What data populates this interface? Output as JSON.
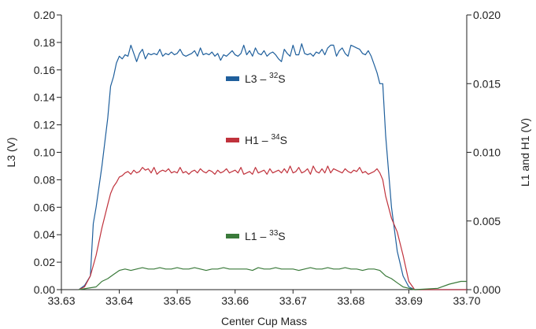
{
  "chart_data": {
    "type": "line",
    "xlabel": "Center Cup Mass",
    "ylabel_left": "L3 (V)",
    "ylabel_right": "L1 and H1 (V)",
    "xlim": [
      33.63,
      33.7
    ],
    "ylim_left": [
      0.0,
      0.2
    ],
    "ylim_right": [
      0.0,
      0.02
    ],
    "x_ticks": [
      "33.63",
      "33.64",
      "33.65",
      "33.66",
      "33.67",
      "33.68",
      "33.69",
      "33.70"
    ],
    "y_left_ticks": [
      "0.00",
      "0.02",
      "0.04",
      "0.06",
      "0.08",
      "0.10",
      "0.12",
      "0.14",
      "0.16",
      "0.18",
      "0.20"
    ],
    "y_right_ticks": [
      "0.000",
      "0.005",
      "0.010",
      "0.015",
      "0.020"
    ],
    "grid": false,
    "legend_placement": "center",
    "series": [
      {
        "name_main": "L3 – ",
        "name_sup": "32",
        "name_suffix": "S",
        "axis": "left",
        "color": "#1f5f9c",
        "x": [
          33.633,
          33.634,
          33.635,
          33.6355,
          33.636,
          33.637,
          33.638,
          33.6385,
          33.639,
          33.6395,
          33.64,
          33.6405,
          33.641,
          33.6415,
          33.642,
          33.6425,
          33.643,
          33.6435,
          33.644,
          33.6445,
          33.645,
          33.6455,
          33.646,
          33.6465,
          33.647,
          33.6475,
          33.648,
          33.6485,
          33.649,
          33.6495,
          33.65,
          33.6505,
          33.651,
          33.6515,
          33.652,
          33.6525,
          33.653,
          33.6535,
          33.654,
          33.6545,
          33.655,
          33.6555,
          33.656,
          33.6565,
          33.657,
          33.6575,
          33.658,
          33.6585,
          33.659,
          33.6595,
          33.66,
          33.6605,
          33.661,
          33.6615,
          33.662,
          33.6625,
          33.663,
          33.6635,
          33.664,
          33.6645,
          33.665,
          33.6655,
          33.666,
          33.6665,
          33.667,
          33.6675,
          33.668,
          33.6685,
          33.669,
          33.6695,
          33.67,
          33.6705,
          33.671,
          33.6715,
          33.672,
          33.6725,
          33.673,
          33.6735,
          33.674,
          33.6745,
          33.675,
          33.6755,
          33.676,
          33.6765,
          33.677,
          33.6775,
          33.678,
          33.6785,
          33.679,
          33.6795,
          33.68,
          33.6805,
          33.681,
          33.6815,
          33.682,
          33.6825,
          33.683,
          33.6835,
          33.684,
          33.6845,
          33.685,
          33.6855,
          33.686,
          33.687,
          33.688,
          33.689,
          33.69,
          33.691,
          33.7
        ],
        "y": [
          0.0,
          0.003,
          0.01,
          0.048,
          0.06,
          0.09,
          0.125,
          0.148,
          0.155,
          0.165,
          0.17,
          0.168,
          0.171,
          0.17,
          0.178,
          0.172,
          0.166,
          0.172,
          0.175,
          0.168,
          0.172,
          0.171,
          0.172,
          0.171,
          0.175,
          0.17,
          0.172,
          0.171,
          0.173,
          0.171,
          0.172,
          0.175,
          0.171,
          0.17,
          0.171,
          0.172,
          0.174,
          0.17,
          0.176,
          0.171,
          0.172,
          0.171,
          0.173,
          0.17,
          0.172,
          0.167,
          0.171,
          0.17,
          0.172,
          0.174,
          0.171,
          0.17,
          0.172,
          0.178,
          0.171,
          0.174,
          0.17,
          0.176,
          0.172,
          0.171,
          0.174,
          0.17,
          0.172,
          0.173,
          0.171,
          0.168,
          0.166,
          0.175,
          0.172,
          0.17,
          0.178,
          0.171,
          0.171,
          0.179,
          0.172,
          0.171,
          0.172,
          0.17,
          0.173,
          0.172,
          0.175,
          0.171,
          0.176,
          0.178,
          0.178,
          0.17,
          0.174,
          0.176,
          0.172,
          0.17,
          0.178,
          0.177,
          0.176,
          0.175,
          0.172,
          0.171,
          0.174,
          0.17,
          0.164,
          0.158,
          0.15,
          0.15,
          0.112,
          0.06,
          0.028,
          0.01,
          0.002,
          0.0,
          0.0
        ]
      },
      {
        "name_main": "H1 – ",
        "name_sup": "34",
        "name_suffix": "S",
        "axis": "right",
        "color": "#c0323c",
        "x": [
          33.633,
          33.634,
          33.635,
          33.636,
          33.637,
          33.638,
          33.6385,
          33.639,
          33.6395,
          33.64,
          33.6405,
          33.641,
          33.6415,
          33.642,
          33.6425,
          33.643,
          33.6435,
          33.644,
          33.6445,
          33.645,
          33.6455,
          33.646,
          33.6465,
          33.647,
          33.6475,
          33.648,
          33.6485,
          33.649,
          33.6495,
          33.65,
          33.6505,
          33.651,
          33.6515,
          33.652,
          33.6525,
          33.653,
          33.6535,
          33.654,
          33.6545,
          33.655,
          33.6555,
          33.656,
          33.6565,
          33.657,
          33.6575,
          33.658,
          33.6585,
          33.659,
          33.6595,
          33.66,
          33.6605,
          33.661,
          33.6615,
          33.662,
          33.6625,
          33.663,
          33.6635,
          33.664,
          33.6645,
          33.665,
          33.6655,
          33.666,
          33.6665,
          33.667,
          33.6675,
          33.668,
          33.6685,
          33.669,
          33.6695,
          33.67,
          33.6705,
          33.671,
          33.6715,
          33.672,
          33.6725,
          33.673,
          33.6735,
          33.674,
          33.6745,
          33.675,
          33.6755,
          33.676,
          33.6765,
          33.677,
          33.6775,
          33.678,
          33.6785,
          33.679,
          33.6795,
          33.68,
          33.6805,
          33.681,
          33.6815,
          33.682,
          33.6825,
          33.683,
          33.6835,
          33.684,
          33.6845,
          33.685,
          33.6855,
          33.686,
          33.687,
          33.688,
          33.689,
          33.69,
          33.691,
          33.7
        ],
        "y": [
          0.0,
          0.0002,
          0.001,
          0.0025,
          0.0045,
          0.0062,
          0.007,
          0.0075,
          0.0078,
          0.0082,
          0.0083,
          0.0085,
          0.0086,
          0.0084,
          0.0087,
          0.0085,
          0.0086,
          0.0089,
          0.0087,
          0.0088,
          0.0085,
          0.0089,
          0.0084,
          0.0086,
          0.0087,
          0.0086,
          0.0088,
          0.0085,
          0.0086,
          0.0085,
          0.0089,
          0.0085,
          0.0086,
          0.0084,
          0.0086,
          0.0087,
          0.0085,
          0.0088,
          0.0086,
          0.0085,
          0.0087,
          0.0086,
          0.0084,
          0.0087,
          0.0085,
          0.0086,
          0.0088,
          0.0085,
          0.0086,
          0.0087,
          0.0085,
          0.0089,
          0.0084,
          0.0085,
          0.0086,
          0.0084,
          0.0089,
          0.0085,
          0.0086,
          0.0087,
          0.0084,
          0.0088,
          0.0085,
          0.0086,
          0.0087,
          0.0085,
          0.0088,
          0.0085,
          0.009,
          0.0085,
          0.0086,
          0.0089,
          0.0085,
          0.0086,
          0.0088,
          0.0084,
          0.009,
          0.0086,
          0.0085,
          0.0088,
          0.0085,
          0.009,
          0.0085,
          0.0088,
          0.0087,
          0.0086,
          0.0085,
          0.0088,
          0.0086,
          0.0085,
          0.0087,
          0.0086,
          0.0089,
          0.0085,
          0.0086,
          0.0084,
          0.0085,
          0.0086,
          0.0088,
          0.0085,
          0.008,
          0.0068,
          0.0052,
          0.0042,
          0.0025,
          0.0006,
          0.0,
          0.0
        ]
      },
      {
        "name_main": "L1 – ",
        "name_sup": "33",
        "name_suffix": "S",
        "axis": "right",
        "color": "#3a7a3a",
        "x": [
          33.633,
          33.636,
          33.637,
          33.638,
          33.639,
          33.64,
          33.641,
          33.642,
          33.643,
          33.644,
          33.645,
          33.646,
          33.647,
          33.648,
          33.649,
          33.65,
          33.651,
          33.652,
          33.653,
          33.654,
          33.655,
          33.656,
          33.657,
          33.658,
          33.659,
          33.66,
          33.661,
          33.662,
          33.663,
          33.664,
          33.665,
          33.666,
          33.667,
          33.668,
          33.669,
          33.67,
          33.671,
          33.672,
          33.673,
          33.674,
          33.675,
          33.676,
          33.677,
          33.678,
          33.679,
          33.68,
          33.681,
          33.682,
          33.683,
          33.684,
          33.685,
          33.6855,
          33.686,
          33.687,
          33.688,
          33.689,
          33.69,
          33.691,
          33.695,
          33.697,
          33.699,
          33.7
        ],
        "y": [
          0.0,
          0.0002,
          0.0006,
          0.0008,
          0.0011,
          0.0014,
          0.0015,
          0.0014,
          0.0015,
          0.0016,
          0.0015,
          0.0015,
          0.0016,
          0.0015,
          0.0015,
          0.0016,
          0.0015,
          0.0015,
          0.0016,
          0.0015,
          0.0014,
          0.0015,
          0.0015,
          0.0016,
          0.0015,
          0.0015,
          0.0015,
          0.0015,
          0.0014,
          0.0016,
          0.0015,
          0.0015,
          0.0016,
          0.0015,
          0.0015,
          0.0015,
          0.0014,
          0.0015,
          0.0016,
          0.0015,
          0.0015,
          0.0016,
          0.0015,
          0.0015,
          0.0016,
          0.0015,
          0.0015,
          0.0014,
          0.0015,
          0.0015,
          0.0014,
          0.0012,
          0.001,
          0.0008,
          0.0005,
          0.0002,
          0.0001,
          0.0,
          0.0001,
          0.0004,
          0.0006,
          0.0006
        ]
      }
    ]
  }
}
